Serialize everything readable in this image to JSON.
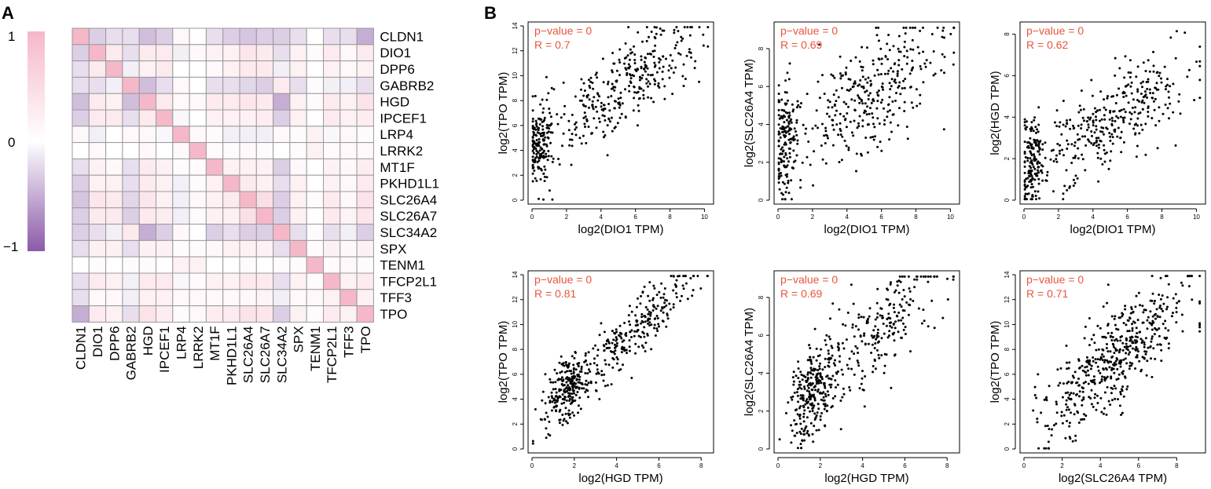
{
  "panels": {
    "a_label": "A",
    "b_label": "B"
  },
  "legend": {
    "labels": [
      "1",
      "0",
      "−1"
    ],
    "high_color": "#f5b8c8",
    "mid_color": "#ffffff",
    "low_color": "#8b5aa8"
  },
  "chart_data": [
    {
      "type": "heatmap",
      "title": "",
      "genes": [
        "CLDN1",
        "DIO1",
        "DPP6",
        "GABRB2",
        "HGD",
        "IPCEF1",
        "LRP4",
        "LRRK2",
        "MT1F",
        "PKHD1L1",
        "SLC26A4",
        "SLC26A7",
        "SLC34A2",
        "SPX",
        "TENM1",
        "TFCP2L1",
        "TFF3",
        "TPO"
      ],
      "value_range": [
        -1,
        1
      ],
      "values": [
        [
          1.0,
          -0.3,
          -0.2,
          -0.2,
          -0.4,
          -0.3,
          0.1,
          0.0,
          -0.2,
          -0.3,
          -0.35,
          -0.3,
          -0.3,
          -0.2,
          0.0,
          -0.2,
          -0.2,
          -0.5
        ],
        [
          -0.3,
          1.0,
          0.3,
          -0.2,
          0.3,
          0.3,
          -0.1,
          0.1,
          0.2,
          0.2,
          0.35,
          0.3,
          -0.2,
          0.2,
          0.05,
          0.3,
          0.1,
          0.3
        ],
        [
          -0.2,
          0.3,
          1.0,
          -0.1,
          0.2,
          0.3,
          0.0,
          0.0,
          0.1,
          0.2,
          0.3,
          0.3,
          -0.1,
          0.2,
          0.0,
          0.2,
          0.1,
          0.2
        ],
        [
          -0.2,
          -0.2,
          -0.1,
          1.0,
          -0.4,
          -0.2,
          0.1,
          0.0,
          -0.2,
          -0.2,
          -0.25,
          -0.3,
          0.3,
          -0.2,
          0.05,
          -0.1,
          -0.1,
          -0.2
        ],
        [
          -0.4,
          0.3,
          0.2,
          -0.4,
          1.0,
          0.3,
          0.1,
          0.1,
          0.3,
          0.3,
          0.35,
          0.3,
          -0.5,
          0.2,
          0.05,
          0.3,
          0.2,
          0.4
        ],
        [
          -0.3,
          0.3,
          0.3,
          -0.2,
          0.3,
          1.0,
          -0.05,
          0.0,
          0.2,
          0.2,
          0.2,
          0.25,
          -0.3,
          0.2,
          0.0,
          0.3,
          0.2,
          0.25
        ],
        [
          0.1,
          -0.1,
          0.0,
          0.1,
          0.1,
          -0.05,
          1.0,
          0.1,
          0.05,
          -0.1,
          -0.1,
          -0.1,
          0.1,
          0.05,
          0.2,
          -0.05,
          0.1,
          0.05
        ],
        [
          0.0,
          0.1,
          0.0,
          0.0,
          0.1,
          0.0,
          0.1,
          1.0,
          0.05,
          0.05,
          0.1,
          0.05,
          0.0,
          0.05,
          0.2,
          0.05,
          0.1,
          0.1
        ],
        [
          -0.2,
          0.2,
          0.1,
          -0.2,
          0.3,
          0.2,
          0.05,
          0.05,
          1.0,
          0.2,
          0.2,
          0.2,
          -0.3,
          0.1,
          0.0,
          0.2,
          0.1,
          0.25
        ],
        [
          -0.3,
          0.2,
          0.2,
          -0.2,
          0.3,
          0.2,
          -0.1,
          0.05,
          0.2,
          1.0,
          0.3,
          0.2,
          -0.2,
          0.2,
          0.0,
          0.2,
          0.1,
          0.3
        ],
        [
          -0.35,
          0.35,
          0.3,
          -0.25,
          0.35,
          0.2,
          -0.1,
          0.1,
          0.2,
          0.3,
          1.0,
          0.45,
          -0.3,
          0.2,
          0.05,
          0.3,
          0.1,
          0.4
        ],
        [
          -0.3,
          0.3,
          0.3,
          -0.3,
          0.3,
          0.25,
          -0.1,
          0.05,
          0.2,
          0.2,
          0.45,
          1.0,
          -0.3,
          0.2,
          0.0,
          0.3,
          0.15,
          0.35
        ],
        [
          -0.3,
          -0.2,
          -0.1,
          0.3,
          -0.5,
          -0.3,
          0.1,
          0.0,
          -0.3,
          -0.2,
          -0.3,
          -0.3,
          1.0,
          -0.2,
          0.05,
          -0.2,
          -0.1,
          -0.3
        ],
        [
          -0.2,
          0.2,
          0.2,
          -0.2,
          0.2,
          0.2,
          0.05,
          0.05,
          0.1,
          0.2,
          0.2,
          0.2,
          -0.2,
          1.0,
          0.05,
          0.2,
          0.1,
          0.2
        ],
        [
          0.0,
          0.05,
          0.0,
          0.05,
          0.05,
          0.0,
          0.2,
          0.2,
          0.0,
          0.0,
          0.05,
          0.0,
          0.05,
          0.05,
          1.0,
          0.05,
          0.1,
          0.05
        ],
        [
          -0.2,
          0.3,
          0.2,
          -0.1,
          0.3,
          0.3,
          -0.05,
          0.05,
          0.2,
          0.2,
          0.3,
          0.3,
          -0.2,
          0.2,
          0.05,
          1.0,
          0.2,
          0.3
        ],
        [
          -0.2,
          0.1,
          0.1,
          -0.1,
          0.2,
          0.2,
          0.1,
          0.1,
          0.1,
          0.1,
          0.1,
          0.15,
          -0.1,
          0.1,
          0.1,
          0.2,
          1.0,
          0.2
        ],
        [
          -0.5,
          0.3,
          0.2,
          -0.2,
          0.4,
          0.25,
          0.05,
          0.1,
          0.25,
          0.3,
          0.4,
          0.35,
          -0.3,
          0.2,
          0.05,
          0.3,
          0.2,
          1.0
        ]
      ]
    },
    {
      "type": "scatter",
      "title": "",
      "xlabel": "log2(DIO1 TPM)",
      "ylabel": "log2(TPO TPM)",
      "xlim": [
        0,
        10.3
      ],
      "ylim": [
        0,
        14
      ],
      "xticks": [
        0,
        2,
        4,
        6,
        8,
        10
      ],
      "yticks": [
        0,
        2,
        4,
        6,
        8,
        10,
        12,
        14
      ],
      "pvalue_text": "p−value = 0",
      "r_text": "R = 0.7",
      "n_points": 500,
      "r": 0.7,
      "x_model": {
        "kind": "cluster-mix",
        "low_frac": 0.3,
        "low_mean": 0.5,
        "low_sd": 0.35,
        "high_mean": 5.2,
        "high_sd": 2.3
      },
      "y_model": {
        "intercept": 4.2,
        "slope": 0.95,
        "noise_sd": 1.7
      }
    },
    {
      "type": "scatter",
      "title": "",
      "xlabel": "log2(DIO1 TPM)",
      "ylabel": "log2(SLC26A4 TPM)",
      "xlim": [
        0,
        10.3
      ],
      "ylim": [
        0,
        9.2
      ],
      "xticks": [
        0,
        2,
        4,
        6,
        8,
        10
      ],
      "yticks": [
        0,
        2,
        4,
        6,
        8
      ],
      "pvalue_text": "p−value = 0",
      "r_text": "R = 0.69",
      "n_points": 500,
      "r": 0.69,
      "x_model": {
        "kind": "cluster-mix",
        "low_frac": 0.3,
        "low_mean": 0.5,
        "low_sd": 0.35,
        "high_mean": 5.2,
        "high_sd": 2.3
      },
      "y_model": {
        "intercept": 2.8,
        "slope": 0.55,
        "noise_sd": 1.5
      }
    },
    {
      "type": "scatter",
      "title": "",
      "xlabel": "log2(DIO1 TPM)",
      "ylabel": "log2(HGD TPM)",
      "xlim": [
        0,
        10.3
      ],
      "ylim": [
        0,
        8.4
      ],
      "xticks": [
        0,
        2,
        4,
        6,
        8,
        10
      ],
      "yticks": [
        0,
        2,
        4,
        6,
        8
      ],
      "pvalue_text": "p−value = 0",
      "r_text": "R = 0.62",
      "n_points": 500,
      "r": 0.62,
      "x_model": {
        "kind": "cluster-mix",
        "low_frac": 0.3,
        "low_mean": 0.5,
        "low_sd": 0.35,
        "high_mean": 5.2,
        "high_sd": 2.3
      },
      "y_model": {
        "intercept": 1.5,
        "slope": 0.48,
        "noise_sd": 1.1
      }
    },
    {
      "type": "scatter",
      "title": "",
      "xlabel": "log2(HGD TPM)",
      "ylabel": "log2(TPO TPM)",
      "xlim": [
        0,
        8.4
      ],
      "ylim": [
        0,
        14
      ],
      "xticks": [
        0,
        2,
        4,
        6,
        8
      ],
      "yticks": [
        0,
        2,
        4,
        6,
        8,
        10,
        12,
        14
      ],
      "pvalue_text": "p−value = 0",
      "r_text": "R = 0.81",
      "n_points": 500,
      "r": 0.81,
      "x_model": {
        "kind": "cluster-mix",
        "low_frac": 0.45,
        "low_mean": 1.6,
        "low_sd": 0.5,
        "high_mean": 4.6,
        "high_sd": 1.6
      },
      "y_model": {
        "intercept": 2.3,
        "slope": 1.5,
        "noise_sd": 1.2
      }
    },
    {
      "type": "scatter",
      "title": "",
      "xlabel": "log2(HGD TPM)",
      "ylabel": "log2(SLC26A4 TPM)",
      "xlim": [
        0,
        8.4
      ],
      "ylim": [
        0,
        9.2
      ],
      "xticks": [
        0,
        2,
        4,
        6,
        8
      ],
      "yticks": [
        0,
        2,
        4,
        6,
        8
      ],
      "pvalue_text": "p−value = 0",
      "r_text": "R = 0.69",
      "n_points": 500,
      "r": 0.69,
      "x_model": {
        "kind": "cluster-mix",
        "low_frac": 0.45,
        "low_mean": 1.6,
        "low_sd": 0.5,
        "high_mean": 4.6,
        "high_sd": 1.6
      },
      "y_model": {
        "intercept": 1.4,
        "slope": 1.0,
        "noise_sd": 1.3
      }
    },
    {
      "type": "scatter",
      "title": "",
      "xlabel": "log2(SLC26A4 TPM)",
      "ylabel": "log2(TPO TPM)",
      "xlim": [
        0,
        9.3
      ],
      "ylim": [
        0,
        14
      ],
      "xticks": [
        0,
        2,
        4,
        6,
        8
      ],
      "yticks": [
        0,
        2,
        4,
        6,
        8,
        10,
        12,
        14
      ],
      "pvalue_text": "p−value = 0",
      "r_text": "R = 0.71",
      "n_points": 500,
      "r": 0.71,
      "x_model": {
        "kind": "cluster-mix",
        "low_frac": 0.0,
        "low_mean": 1.0,
        "low_sd": 0.5,
        "high_mean": 4.8,
        "high_sd": 2.0
      },
      "y_model": {
        "intercept": 1.2,
        "slope": 1.3,
        "noise_sd": 1.9
      }
    }
  ]
}
